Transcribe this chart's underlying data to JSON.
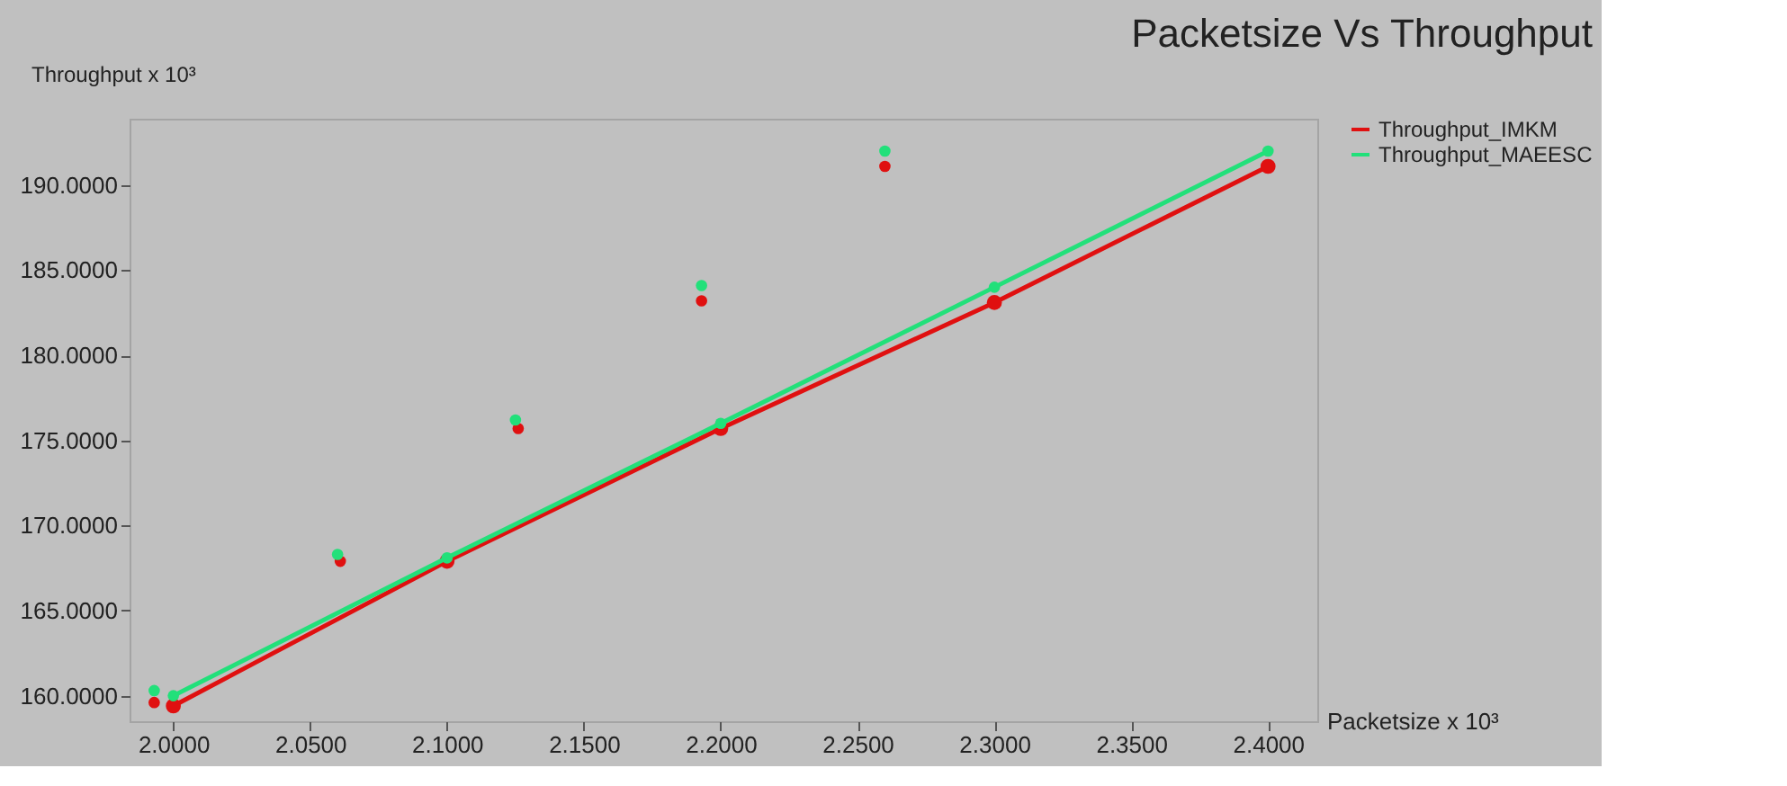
{
  "chart_data": {
    "type": "line",
    "title": "Packetsize Vs Throughput",
    "xlabel": "Packetsize x 10³",
    "ylabel": "Throughput x 10³",
    "xlim": [
      1.984,
      2.418
    ],
    "ylim": [
      158.5,
      193.9
    ],
    "xticks": [
      {
        "value": 2.0,
        "label": "2.0000"
      },
      {
        "value": 2.05,
        "label": "2.0500"
      },
      {
        "value": 2.1,
        "label": "2.1000"
      },
      {
        "value": 2.15,
        "label": "2.1500"
      },
      {
        "value": 2.2,
        "label": "2.2000"
      },
      {
        "value": 2.25,
        "label": "2.2500"
      },
      {
        "value": 2.3,
        "label": "2.3000"
      },
      {
        "value": 2.35,
        "label": "2.3500"
      },
      {
        "value": 2.4,
        "label": "2.4000"
      }
    ],
    "yticks": [
      {
        "value": 160,
        "label": "160.0000"
      },
      {
        "value": 165,
        "label": "165.0000"
      },
      {
        "value": 170,
        "label": "170.0000"
      },
      {
        "value": 175,
        "label": "175.0000"
      },
      {
        "value": 180,
        "label": "180.0000"
      },
      {
        "value": 185,
        "label": "185.0000"
      },
      {
        "value": 190,
        "label": "190.0000"
      }
    ],
    "legend": "top right",
    "grid": false,
    "marker": "circle",
    "line_style": "solid",
    "series": [
      {
        "name": "Throughput_IMKM",
        "color": "#e01010",
        "x": [
          2.0,
          2.1,
          2.2,
          2.3,
          2.4
        ],
        "values": [
          159.4,
          167.9,
          175.7,
          183.1,
          191.1
        ]
      },
      {
        "name": "Throughput_MAEESC",
        "color": "#22e07a",
        "x": [
          2.0,
          2.1,
          2.2,
          2.3,
          2.4
        ],
        "values": [
          160.0,
          168.1,
          176.0,
          184.0,
          192.0
        ]
      },
      {
        "type": "scatter",
        "color": "#e01010",
        "x": [
          1.993,
          2.061,
          2.126,
          2.193,
          2.26
        ],
        "values": [
          159.6,
          167.9,
          175.7,
          183.2,
          191.1
        ]
      },
      {
        "type": "scatter",
        "color": "#22e07a",
        "x": [
          1.993,
          2.06,
          2.125,
          2.193,
          2.26
        ],
        "values": [
          160.3,
          168.3,
          176.2,
          184.1,
          192.0
        ]
      }
    ]
  }
}
